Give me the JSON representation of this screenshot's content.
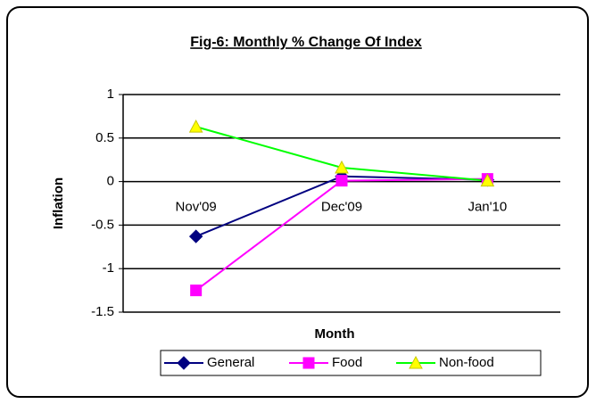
{
  "chart_data": {
    "type": "line",
    "title": "Fig-6: Monthly % Change Of Index",
    "x_label": "Month",
    "y_label": "Inflation",
    "categories": [
      "Nov'09",
      "Dec'09",
      "Jan'10"
    ],
    "series": [
      {
        "name": "General",
        "color": "#000080",
        "marker": "diamond",
        "marker_color": "#000080",
        "values": [
          -0.63,
          0.06,
          0.02
        ]
      },
      {
        "name": "Food",
        "color": "#ff00ff",
        "marker": "square",
        "marker_color": "#ff00ff",
        "values": [
          -1.25,
          0.01,
          0.03
        ]
      },
      {
        "name": "Non-food",
        "color": "#00ff00",
        "marker": "triangle",
        "marker_color": "#ffff00",
        "values": [
          0.63,
          0.16,
          0.01
        ]
      }
    ],
    "ylim": [
      -1.5,
      1
    ],
    "yticks": [
      -1.5,
      -1,
      -0.5,
      0,
      0.5,
      1
    ],
    "grid": true,
    "legend": "bottom"
  }
}
